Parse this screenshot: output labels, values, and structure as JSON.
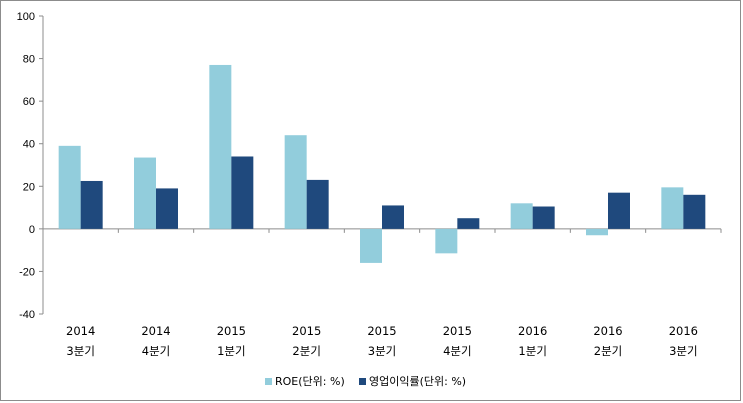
{
  "chart_data": {
    "type": "bar",
    "title": "",
    "xlabel": "",
    "ylabel": "",
    "ylim": [
      -40,
      100
    ],
    "yticks": [
      "100",
      "80",
      "60",
      "40",
      "20",
      "0",
      "-20",
      "-40"
    ],
    "yticks_values": [
      100,
      80,
      60,
      40,
      20,
      0,
      -20,
      -40
    ],
    "categories": [
      {
        "year": "2014",
        "quarter": "3분기"
      },
      {
        "year": "2014",
        "quarter": "4분기"
      },
      {
        "year": "2015",
        "quarter": "1분기"
      },
      {
        "year": "2015",
        "quarter": "2분기"
      },
      {
        "year": "2015",
        "quarter": "3분기"
      },
      {
        "year": "2015",
        "quarter": "4분기"
      },
      {
        "year": "2016",
        "quarter": "1분기"
      },
      {
        "year": "2016",
        "quarter": "2분기"
      },
      {
        "year": "2016",
        "quarter": "3분기"
      }
    ],
    "series": [
      {
        "name": "ROE(단위: %)",
        "color": "#92cddc",
        "values": [
          39,
          33.5,
          77,
          44,
          -16,
          -11.5,
          12,
          -3,
          19.5
        ]
      },
      {
        "name": "영업이익률(단위: %)",
        "color": "#1f497d",
        "values": [
          22.5,
          19,
          34,
          23,
          11,
          5,
          10.5,
          17,
          16
        ]
      }
    ],
    "grid": false,
    "legend_position": "bottom"
  }
}
